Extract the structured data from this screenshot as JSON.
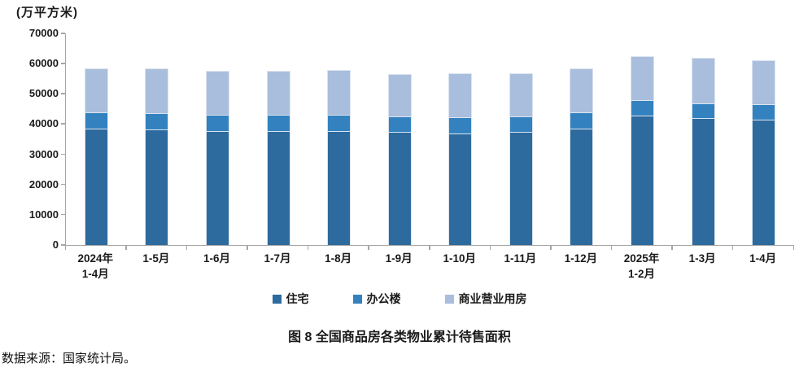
{
  "chart": {
    "unit_label": "(万平方米)",
    "title": "图 8 全国商品房各类物业累计待售面积",
    "source": "数据来源：国家统计局。"
  },
  "chart_data": {
    "type": "bar",
    "stacked": true,
    "title": "图 8 全国商品房各类物业累计待售面积",
    "ylabel": "(万平方米)",
    "categories": [
      "2024年\n1-4月",
      "1-5月",
      "1-6月",
      "1-7月",
      "1-8月",
      "1-9月",
      "1-10月",
      "1-11月",
      "1-12月",
      "2025年\n1-2月",
      "1-3月",
      "1-4月"
    ],
    "series": [
      {
        "name": "住宅",
        "color": "#2d6a9d",
        "values": [
          38500,
          38300,
          37800,
          37800,
          37800,
          37300,
          37000,
          37300,
          38600,
          42900,
          42000,
          41600
        ]
      },
      {
        "name": "办公楼",
        "color": "#3382bf",
        "values": [
          5300,
          5300,
          5300,
          5300,
          5300,
          5300,
          5200,
          5300,
          5400,
          5100,
          4900,
          4900
        ]
      },
      {
        "name": "商业营业用房",
        "color": "#a9bedc",
        "values": [
          14600,
          14700,
          14400,
          14400,
          14700,
          14000,
          14500,
          14100,
          14400,
          14600,
          15000,
          14600
        ]
      }
    ],
    "ylim": [
      0,
      70000
    ],
    "ytick_step": 10000,
    "yticks": [
      "0",
      "10000",
      "20000",
      "30000",
      "40000",
      "50000",
      "60000",
      "70000"
    ],
    "legend_position": "bottom",
    "grid": false,
    "axis_color": "#a6a6a6"
  }
}
